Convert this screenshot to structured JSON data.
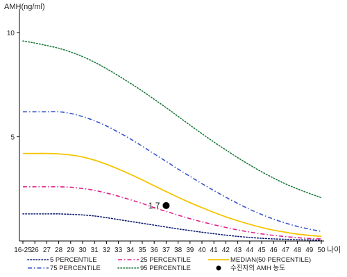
{
  "chart_data": {
    "type": "line",
    "ylabel": "AMH(ng/ml)",
    "xlabel": "나이",
    "categories": [
      "16-25",
      "26",
      "27",
      "28",
      "29",
      "30",
      "31",
      "32",
      "33",
      "34",
      "35",
      "36",
      "37",
      "38",
      "39",
      "40",
      "41",
      "42",
      "43",
      "44",
      "45",
      "46",
      "47",
      "48",
      "49",
      "50"
    ],
    "ylim": [
      0,
      11
    ],
    "yticks": [
      5,
      10
    ],
    "grid": false,
    "legend_position": "bottom",
    "series": [
      {
        "name": "5 PERCENTILE",
        "color": "#0b1a6e",
        "dash": "dotted",
        "values": [
          1.3,
          1.3,
          1.3,
          1.3,
          1.28,
          1.25,
          1.2,
          1.12,
          1.03,
          0.94,
          0.85,
          0.76,
          0.67,
          0.58,
          0.5,
          0.42,
          0.35,
          0.28,
          0.22,
          0.17,
          0.13,
          0.1,
          0.08,
          0.06,
          0.05,
          0.04
        ]
      },
      {
        "name": "25 PERCENTILE",
        "color": "#e0208a",
        "dash": "dashdot",
        "values": [
          2.6,
          2.6,
          2.6,
          2.6,
          2.58,
          2.52,
          2.43,
          2.3,
          2.15,
          1.98,
          1.8,
          1.6,
          1.42,
          1.24,
          1.07,
          0.92,
          0.78,
          0.65,
          0.53,
          0.43,
          0.34,
          0.27,
          0.21,
          0.16,
          0.12,
          0.1
        ]
      },
      {
        "name": "MEDIAN(50 PERCENTILE)",
        "color": "#f5c400",
        "dash": "solid",
        "values": [
          4.2,
          4.2,
          4.2,
          4.18,
          4.13,
          4.03,
          3.88,
          3.68,
          3.45,
          3.2,
          2.93,
          2.65,
          2.37,
          2.1,
          1.84,
          1.6,
          1.37,
          1.16,
          0.97,
          0.8,
          0.65,
          0.52,
          0.42,
          0.33,
          0.27,
          0.22
        ]
      },
      {
        "name": "75 PERCENTILE",
        "color": "#3355cc",
        "dash": "dashdot",
        "values": [
          6.2,
          6.2,
          6.2,
          6.2,
          6.12,
          5.97,
          5.77,
          5.52,
          5.22,
          4.9,
          4.55,
          4.18,
          3.82,
          3.45,
          3.1,
          2.75,
          2.42,
          2.1,
          1.8,
          1.52,
          1.27,
          1.05,
          0.86,
          0.7,
          0.57,
          0.46
        ]
      },
      {
        "name": "95 PERCENTILE",
        "color": "#1e7a3c",
        "dash": "dotted",
        "values": [
          9.6,
          9.5,
          9.38,
          9.25,
          9.07,
          8.85,
          8.58,
          8.27,
          7.93,
          7.57,
          7.2,
          6.8,
          6.4,
          5.98,
          5.56,
          5.15,
          4.75,
          4.37,
          4.0,
          3.65,
          3.32,
          3.02,
          2.74,
          2.5,
          2.28,
          2.08
        ]
      }
    ],
    "highlight_point": {
      "name": "수진자의 AMH 농도",
      "x": "37",
      "y": 1.7,
      "label": "1.7",
      "color": "#000000"
    },
    "legend_order": [
      "5 PERCENTILE",
      "25 PERCENTILE",
      "MEDIAN(50 PERCENTILE)",
      "75 PERCENTILE",
      "95 PERCENTILE",
      "수진자의 AMH 농도"
    ]
  }
}
